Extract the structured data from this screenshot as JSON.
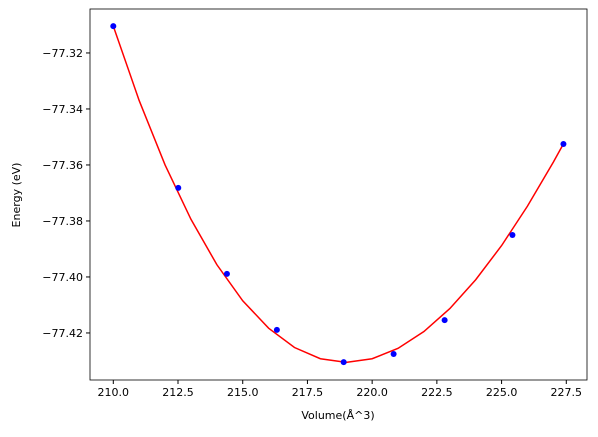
{
  "chart_data": {
    "type": "scatter",
    "x_label": "Volume(Å^3)",
    "y_label": "Energy (eV)",
    "xlim": [
      209.1,
      228.3
    ],
    "ylim": [
      -77.4368,
      -77.3043
    ],
    "xticks": [
      {
        "value": 210,
        "label": "210.0"
      },
      {
        "value": 212.5,
        "label": "212.5"
      },
      {
        "value": 215,
        "label": "215.0"
      },
      {
        "value": 217.5,
        "label": "217.5"
      },
      {
        "value": 220,
        "label": "220.0"
      },
      {
        "value": 222.5,
        "label": "222.5"
      },
      {
        "value": 225,
        "label": "225.0"
      },
      {
        "value": 227.5,
        "label": "227.5"
      }
    ],
    "yticks": [
      {
        "value": -77.32,
        "label": "−77.32"
      },
      {
        "value": -77.34,
        "label": "−77.34"
      },
      {
        "value": -77.36,
        "label": "−77.36"
      },
      {
        "value": -77.38,
        "label": "−77.38"
      },
      {
        "value": -77.4,
        "label": "−77.40"
      },
      {
        "value": -77.42,
        "label": "−77.42"
      }
    ],
    "series": [
      {
        "kind": "line",
        "color": "#ff0000",
        "x": [
          210,
          211,
          212,
          213,
          214,
          215,
          216,
          217,
          218,
          219,
          220,
          221,
          222,
          223,
          224,
          225,
          226,
          227,
          227.4
        ],
        "values": [
          -77.3104,
          -77.337,
          -77.36,
          -77.3794,
          -77.3956,
          -77.4085,
          -77.4183,
          -77.4252,
          -77.4292,
          -77.4305,
          -77.4292,
          -77.4255,
          -77.4195,
          -77.4113,
          -77.401,
          -77.3888,
          -77.3747,
          -77.359,
          -77.3523
        ]
      },
      {
        "kind": "points",
        "color": "#0000ff",
        "x": [
          210.0,
          212.51,
          214.39,
          216.32,
          218.9,
          220.83,
          222.8,
          225.42,
          227.39
        ],
        "values": [
          -77.3104,
          -77.3682,
          -77.3989,
          -77.4189,
          -77.4304,
          -77.4275,
          -77.4154,
          -77.385,
          -77.3525
        ]
      }
    ]
  }
}
